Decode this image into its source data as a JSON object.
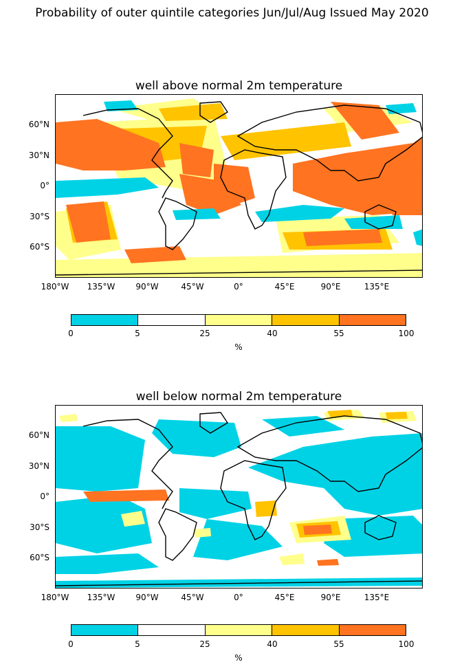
{
  "title": "Probability of outer quintile categories Jun/Jul/Aug Issued May 2020",
  "colors": {
    "cyan": "#00d2e6",
    "white": "#ffffff",
    "light_yellow": "#ffff8c",
    "gold": "#ffc300",
    "orange": "#ff7321",
    "land_outline": "#000000"
  },
  "lat_ticks": [
    "60°N",
    "30°N",
    "0°",
    "30°S",
    "60°S"
  ],
  "lon_ticks": [
    "180°W",
    "135°W",
    "90°W",
    "45°W",
    "0°",
    "45°E",
    "90°E",
    "135°E"
  ],
  "panels": [
    {
      "id": "above",
      "title": "well above normal 2m temperature"
    },
    {
      "id": "below",
      "title": "well below normal 2m temperature"
    }
  ],
  "colorbar": {
    "boundaries": [
      "0",
      "5",
      "25",
      "40",
      "55",
      "100"
    ],
    "unit": "%",
    "colors": [
      "#00d2e6",
      "#ffffff",
      "#ffff8c",
      "#ffc300",
      "#ff7321"
    ]
  }
}
